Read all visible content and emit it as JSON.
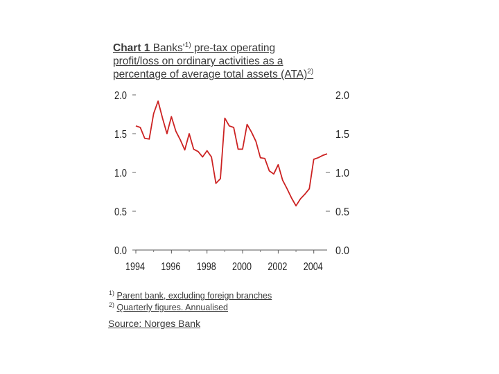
{
  "chart_data": {
    "type": "line",
    "title_parts": {
      "chart_label": "Chart 1",
      "line1": "Banks'",
      "sup1": "1)",
      "line1_rest": " pre-tax operating",
      "line2": "profit/loss on ordinary activities as a",
      "line3": "percentage of average total assets (ATA)",
      "sup2": "2)"
    },
    "y_ticks": [
      "0.0",
      "0.5",
      "1.0",
      "1.5",
      "2.0"
    ],
    "x_ticks": [
      "1994",
      "1996",
      "1998",
      "2000",
      "2002",
      "2004"
    ],
    "ylim": [
      0,
      2.0
    ],
    "xlim": [
      1994,
      2004.75
    ],
    "grid": false,
    "series": [
      {
        "color": "#cc2222",
        "x": [
          1994.0,
          1994.25,
          1994.5,
          1994.75,
          1995.0,
          1995.25,
          1995.5,
          1995.75,
          1996.0,
          1996.25,
          1996.5,
          1996.75,
          1997.0,
          1997.25,
          1997.5,
          1997.75,
          1998.0,
          1998.25,
          1998.5,
          1998.75,
          1999.0,
          1999.25,
          1999.5,
          1999.75,
          2000.0,
          2000.25,
          2000.5,
          2000.75,
          2001.0,
          2001.25,
          2001.5,
          2001.75,
          2002.0,
          2002.25,
          2002.5,
          2002.75,
          2003.0,
          2003.25,
          2003.5,
          2003.75,
          2004.0,
          2004.25,
          2004.5,
          2004.75
        ],
        "values": [
          1.6,
          1.58,
          1.44,
          1.43,
          1.76,
          1.92,
          1.7,
          1.5,
          1.72,
          1.53,
          1.42,
          1.29,
          1.5,
          1.3,
          1.27,
          1.2,
          1.28,
          1.2,
          0.86,
          0.92,
          1.7,
          1.6,
          1.58,
          1.3,
          1.3,
          1.62,
          1.52,
          1.4,
          1.19,
          1.18,
          1.02,
          0.98,
          1.1,
          0.9,
          0.79,
          0.67,
          0.57,
          0.66,
          0.72,
          0.79,
          1.17,
          1.19,
          1.22,
          1.24
        ]
      }
    ]
  },
  "footnotes": [
    {
      "marker": "1)",
      "text": "Parent bank, excluding foreign branches"
    },
    {
      "marker": "2)",
      "text": "Quarterly figures. Annualised"
    }
  ],
  "source": "Source: Norges Bank"
}
